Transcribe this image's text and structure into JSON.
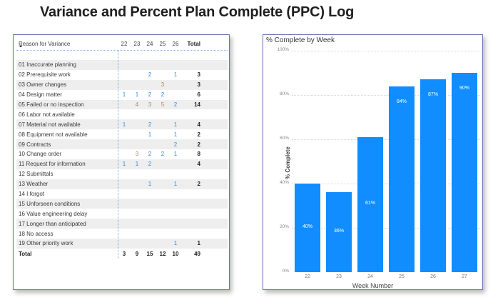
{
  "page": {
    "title": "Variance and Percent Plan Complete (PPC) Log"
  },
  "table": {
    "header": {
      "label": "Reason for Variance",
      "weeks": [
        "22",
        "23",
        "24",
        "25",
        "26"
      ],
      "total": "Total"
    },
    "rows": [
      {
        "label": "01 Inaccurate planning",
        "values": [
          "",
          "",
          "",
          "",
          ""
        ],
        "colors": [
          "",
          "",
          "",
          "",
          ""
        ],
        "total": ""
      },
      {
        "label": "02 Prerequisite work",
        "values": [
          "",
          "",
          "2",
          "",
          "1"
        ],
        "colors": [
          "",
          "",
          "blue",
          "",
          "blue"
        ],
        "total": "3"
      },
      {
        "label": "03 Owner changes",
        "values": [
          "",
          "",
          "",
          "3",
          ""
        ],
        "colors": [
          "",
          "",
          "",
          "orange",
          ""
        ],
        "total": "3"
      },
      {
        "label": "04 Design matter",
        "values": [
          "1",
          "1",
          "2",
          "2",
          ""
        ],
        "colors": [
          "blue",
          "blue",
          "blue",
          "blue",
          ""
        ],
        "total": "6"
      },
      {
        "label": "05 Failed or no inspection",
        "values": [
          "",
          "4",
          "3",
          "5",
          "2"
        ],
        "colors": [
          "",
          "orange",
          "orange",
          "orange",
          "blue"
        ],
        "total": "14"
      },
      {
        "label": "06 Labor not available",
        "values": [
          "",
          "",
          "",
          "",
          ""
        ],
        "colors": [
          "",
          "",
          "",
          "",
          ""
        ],
        "total": ""
      },
      {
        "label": "07 Material not available",
        "values": [
          "1",
          "",
          "2",
          "",
          "1"
        ],
        "colors": [
          "blue",
          "",
          "blue",
          "",
          "blue"
        ],
        "total": "4"
      },
      {
        "label": "08 Equipment not available",
        "values": [
          "",
          "",
          "1",
          "",
          "1"
        ],
        "colors": [
          "",
          "",
          "blue",
          "",
          "blue"
        ],
        "total": "2"
      },
      {
        "label": "09 Contracts",
        "values": [
          "",
          "",
          "",
          "",
          "2"
        ],
        "colors": [
          "",
          "",
          "",
          "",
          "blue"
        ],
        "total": "2"
      },
      {
        "label": "10 Change order",
        "values": [
          "",
          "3",
          "2",
          "2",
          "1"
        ],
        "colors": [
          "",
          "orange",
          "blue",
          "blue",
          "blue"
        ],
        "total": "8"
      },
      {
        "label": "11 Request for information",
        "values": [
          "1",
          "1",
          "2",
          "",
          ""
        ],
        "colors": [
          "blue",
          "blue",
          "blue",
          "",
          ""
        ],
        "total": "4"
      },
      {
        "label": "12 Submittals",
        "values": [
          "",
          "",
          "",
          "",
          ""
        ],
        "colors": [
          "",
          "",
          "",
          "",
          ""
        ],
        "total": ""
      },
      {
        "label": "13 Weather",
        "values": [
          "",
          "",
          "1",
          "",
          "1"
        ],
        "colors": [
          "",
          "",
          "blue",
          "",
          "blue"
        ],
        "total": "2"
      },
      {
        "label": "14 I forgot",
        "values": [
          "",
          "",
          "",
          "",
          ""
        ],
        "colors": [
          "",
          "",
          "",
          "",
          ""
        ],
        "total": ""
      },
      {
        "label": "15 Unforseen conditions",
        "values": [
          "",
          "",
          "",
          "",
          ""
        ],
        "colors": [
          "",
          "",
          "",
          "",
          ""
        ],
        "total": ""
      },
      {
        "label": "16 Value engineering delay",
        "values": [
          "",
          "",
          "",
          "",
          ""
        ],
        "colors": [
          "",
          "",
          "",
          "",
          ""
        ],
        "total": ""
      },
      {
        "label": "17 Longer than anticipated",
        "values": [
          "",
          "",
          "",
          "",
          ""
        ],
        "colors": [
          "",
          "",
          "",
          "",
          ""
        ],
        "total": ""
      },
      {
        "label": "18 No access",
        "values": [
          "",
          "",
          "",
          "",
          ""
        ],
        "colors": [
          "",
          "",
          "",
          "",
          ""
        ],
        "total": ""
      },
      {
        "label": "19 Other priority work",
        "values": [
          "",
          "",
          "",
          "",
          "1"
        ],
        "colors": [
          "",
          "",
          "",
          "",
          "blue"
        ],
        "total": "1"
      }
    ],
    "totals": {
      "label": "Total",
      "values": [
        "3",
        "9",
        "15",
        "12",
        "10"
      ],
      "total": "49"
    },
    "colors": {
      "blue": "#2a8be6",
      "orange": "#b5835a"
    }
  },
  "chart_data": {
    "type": "bar",
    "title": "% Complete by Week",
    "xlabel": "Week Number",
    "ylabel": "% Complete",
    "categories": [
      "22",
      "23",
      "24",
      "25",
      "26",
      "27"
    ],
    "values": [
      40,
      36,
      61,
      84,
      87,
      90
    ],
    "data_labels": [
      "40%",
      "36%",
      "61%",
      "84%",
      "87%",
      "90%"
    ],
    "ylim": [
      0,
      100
    ],
    "yticks": [
      "0%",
      "20%",
      "40%",
      "60%",
      "80%",
      "100%"
    ],
    "grid": true,
    "legend": null,
    "bar_color": "#118dff"
  }
}
